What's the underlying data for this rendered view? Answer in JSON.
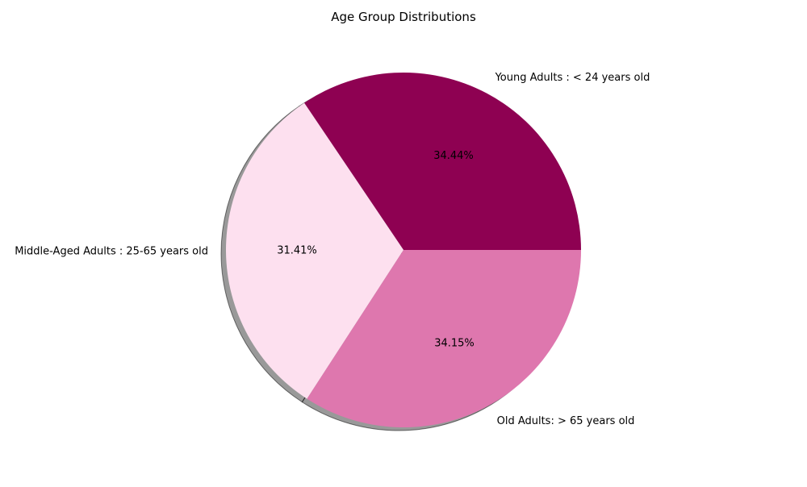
{
  "chart_data": {
    "type": "pie",
    "title": "Age Group Distributions",
    "labels": [
      "Young Adults : < 24 years old",
      "Middle-Aged Adults : 25-65 years old",
      "Old Adults: > 65 years old"
    ],
    "values": [
      34.44,
      31.41,
      34.15
    ],
    "percent_labels": [
      "34.44%",
      "31.41%",
      "34.15%"
    ],
    "colors": [
      "#8e0152",
      "#fde0ef",
      "#de77ae"
    ],
    "shadow": true,
    "start_angle_degrees": 0,
    "direction": "counterclockwise"
  }
}
